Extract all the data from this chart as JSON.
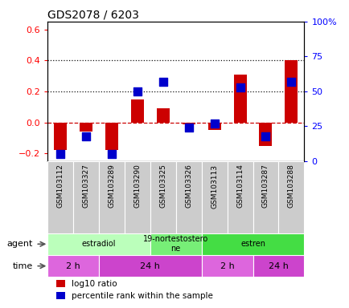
{
  "title": "GDS2078 / 6203",
  "samples": [
    "GSM103112",
    "GSM103327",
    "GSM103289",
    "GSM103290",
    "GSM103325",
    "GSM103326",
    "GSM103113",
    "GSM103114",
    "GSM103287",
    "GSM103288"
  ],
  "log10_ratio": [
    -0.18,
    -0.06,
    -0.18,
    0.15,
    0.09,
    -0.01,
    -0.05,
    0.31,
    -0.15,
    0.4
  ],
  "percentile": [
    5,
    18,
    5,
    50,
    57,
    24,
    27,
    53,
    18,
    57
  ],
  "ylim_left": [
    -0.25,
    0.65
  ],
  "ylim_right": [
    0,
    100
  ],
  "yticks_left": [
    -0.2,
    0.0,
    0.2,
    0.4,
    0.6
  ],
  "yticks_right": [
    0,
    25,
    50,
    75,
    100
  ],
  "ytick_labels_right": [
    "0",
    "25",
    "50",
    "75",
    "100%"
  ],
  "hlines_dotted": [
    0.4,
    0.2
  ],
  "hline_zero_dashed": 0.0,
  "bar_color": "#cc0000",
  "dot_color": "#0000cc",
  "zero_line_color": "#cc0000",
  "hline_color": "#111111",
  "agent_labels": [
    {
      "text": "estradiol",
      "start": 0,
      "end": 4,
      "color": "#bbffbb"
    },
    {
      "text": "19-nortestostero\nne",
      "start": 4,
      "end": 6,
      "color": "#77ee77"
    },
    {
      "text": "estren",
      "start": 6,
      "end": 10,
      "color": "#44dd44"
    }
  ],
  "time_labels": [
    {
      "text": "2 h",
      "start": 0,
      "end": 2,
      "color": "#dd66dd"
    },
    {
      "text": "24 h",
      "start": 2,
      "end": 6,
      "color": "#cc44cc"
    },
    {
      "text": "2 h",
      "start": 6,
      "end": 8,
      "color": "#dd66dd"
    },
    {
      "text": "24 h",
      "start": 8,
      "end": 10,
      "color": "#cc44cc"
    }
  ],
  "legend_items": [
    {
      "color": "#cc0000",
      "label": "log10 ratio"
    },
    {
      "color": "#0000cc",
      "label": "percentile rank within the sample"
    }
  ],
  "label_bg_color": "#cccccc",
  "bg_color": "#ffffff",
  "bar_width": 0.5,
  "dot_size": 50
}
